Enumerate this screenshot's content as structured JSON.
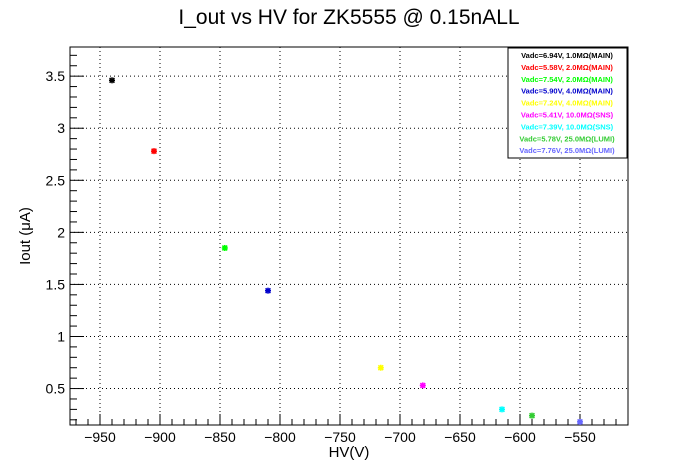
{
  "chart_data": {
    "type": "scatter",
    "title": "I_out vs HV for ZK5555 @ 0.15nALL",
    "xlabel": "HV(V)",
    "ylabel": "Iout (μA)",
    "xlim": [
      -975,
      -510
    ],
    "ylim": [
      0.15,
      3.78
    ],
    "xticks": [
      -950,
      -900,
      -850,
      -800,
      -750,
      -700,
      -650,
      -600,
      -550
    ],
    "yticks": [
      0.5,
      1,
      1.5,
      2,
      2.5,
      3,
      3.5
    ],
    "grid": true,
    "legend_position": "top-right",
    "series": [
      {
        "name": "Vadc=6.94V, 1.0MΩ(MAIN)",
        "color": "#000000",
        "x": [
          -940
        ],
        "y": [
          3.46
        ]
      },
      {
        "name": "Vadc=5.58V, 2.0MΩ(MAIN)",
        "color": "#ff0000",
        "x": [
          -905
        ],
        "y": [
          2.78
        ]
      },
      {
        "name": "Vadc=7.54V, 2.0MΩ(MAIN)",
        "color": "#00ff00",
        "x": [
          -846
        ],
        "y": [
          1.85
        ]
      },
      {
        "name": "Vadc=5.90V, 4.0MΩ(MAIN)",
        "color": "#0000cc",
        "x": [
          -810
        ],
        "y": [
          1.44
        ]
      },
      {
        "name": "Vadc=7.24V, 4.0MΩ(MAIN)",
        "color": "#ffff00",
        "x": [
          -716
        ],
        "y": [
          0.7
        ]
      },
      {
        "name": "Vadc=5.41V, 10.0MΩ(SNS)",
        "color": "#ff00ff",
        "x": [
          -681
        ],
        "y": [
          0.53
        ]
      },
      {
        "name": "Vadc=7.39V, 10.0MΩ(SNS)",
        "color": "#00ffff",
        "x": [
          -615
        ],
        "y": [
          0.3
        ]
      },
      {
        "name": "Vadc=5.78V, 25.0MΩ(LUMI)",
        "color": "#33cc33",
        "x": [
          -590
        ],
        "y": [
          0.24
        ]
      },
      {
        "name": "Vadc=7.76V, 25.0MΩ(LUMI)",
        "color": "#6666ff",
        "x": [
          -550
        ],
        "y": [
          0.18
        ]
      }
    ]
  }
}
